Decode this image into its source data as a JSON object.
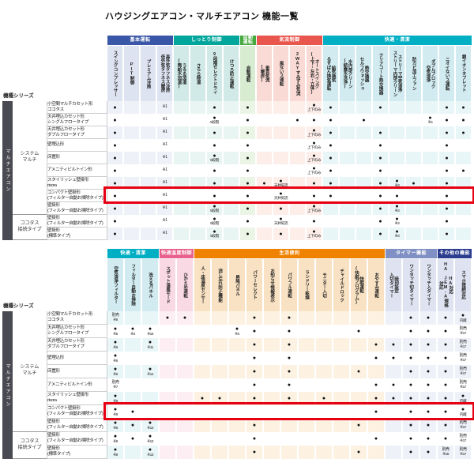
{
  "title": "ハウジングエアコン・マルチエアコン 機能一覧",
  "series_header": "機種シリーズ",
  "category_bar": "マルチエアコン",
  "left_groups": [
    {
      "label": "システム\nマルチ",
      "span": 9
    },
    {
      "label": "ココタス\n接続タイプ",
      "span": 2
    }
  ],
  "row_names": [
    "小空間マルチカセット形\nココタス",
    "天井埋込カセット形\nシングルフロータイプ",
    "天井埋込カセット形\nダブルフロータイプ",
    "壁埋込形",
    "床置形",
    "アメニティビルトイン形",
    "スタイリッシュ壁掛形\nrisora",
    "コンパクト壁掛形\n(フィルター自動お掃除タイプ)",
    "壁掛形\n(フィルター自動お掃除タイプ)",
    "壁掛形\n(フィルター自動お掃除タイプ)",
    "壁掛形\n(標準タイプ)"
  ],
  "highlight": {
    "row_index": 7,
    "color": "#e60012"
  },
  "tables": [
    {
      "name": "top-feature-table",
      "groups": [
        {
          "label": "基本運転",
          "color": "#3a57a7",
          "light": "#dde3f1",
          "tint": "#eef1f8",
          "cols": [
            "スイングコンプレッサー",
            "PIT制御",
            "プレミアム冷房",
            "高外気タフネス冷房\n低外気タフネス暖房"
          ]
        },
        {
          "label": "しっとり制御",
          "color": "#00a59b",
          "light": "#d1eae7",
          "tint": "#e9f5f3",
          "cols": [
            "うるる加湿\n(無給水加湿)",
            "さらら除湿",
            "9段階セレクトドライ",
            "けつろ防止運転"
          ]
        },
        {
          "label": "自動\n運転",
          "color": "#44a83d",
          "light": "#d8ecd2",
          "tint": "#ebf5e6",
          "cols": [
            "自動運転"
          ]
        },
        {
          "label": "気流制御",
          "color": "#e8564e",
          "light": "#f9dad4",
          "tint": "#fdeeea",
          "cols": [
            "垂直気流\n(暖房)",
            "風ないス運転",
            "2WAYすみずみ気流",
            "オートスイング\n(上下・左右・立体)"
          ]
        },
        {
          "label": "快適・清潔",
          "color": "#00afc3",
          "light": "#d1ebf1",
          "tint": "#e9f6f8",
          "cols": [
            "給気換気\nるすばん換気運転",
            "水内部クリーン\n(結露水洗浄)",
            "熱交換器\nセルフウォッシュ",
            "クリアコート熱交換器",
            "ストリーマ空気清浄\nストリーマ内部クリーン",
            "防カビ加工ファン",
            "ダブルブロック\n空気清浄",
            "ニオイないス運転",
            "銀イオンタブレット"
          ]
        }
      ],
      "cells": [
        [
          "●",
          "",
          "",
          "※1",
          "",
          "",
          "●",
          "",
          "●",
          "",
          "",
          "",
          "●|上下のみ",
          "●",
          "",
          "",
          "●",
          "",
          "",
          "",
          "●",
          "●"
        ],
        [
          "●",
          "",
          "",
          "※1",
          "",
          "",
          "●|5段階",
          "",
          "●",
          "",
          "",
          "●",
          "●",
          "●",
          "",
          "●",
          "",
          "",
          "",
          "●|※4",
          "●",
          "●"
        ],
        [
          "●",
          "",
          "",
          "※1",
          "",
          "",
          "●",
          "",
          "●",
          "",
          "",
          "",
          "●|上下のみ",
          "●",
          "",
          "",
          "●",
          "",
          "",
          "",
          "●",
          "●"
        ],
        [
          "●",
          "",
          "",
          "※1",
          "",
          "",
          "●",
          "",
          "●",
          "",
          "",
          "",
          "●|上下のみ",
          "●",
          "",
          "",
          "●",
          "",
          "",
          "",
          "●",
          ""
        ],
        [
          "●",
          "",
          "",
          "※1",
          "",
          "",
          "●|5段階",
          "",
          "●",
          "",
          "",
          "",
          "●|上下のみ",
          "●",
          "",
          "",
          "●",
          "",
          "",
          "",
          "●",
          ""
        ],
        [
          "●",
          "",
          "",
          "※1",
          "",
          "",
          "●",
          "",
          "●",
          "",
          "",
          "",
          "●|上下のみ",
          "●",
          "",
          "",
          "●",
          "",
          "",
          "",
          "●",
          "●"
        ],
        [
          "●",
          "",
          "",
          "※1",
          "",
          "",
          "●",
          "",
          "●",
          "●",
          "●|天井気流",
          "",
          "●",
          "●",
          "",
          "",
          "●",
          "●|※3",
          "●",
          "",
          "●",
          ""
        ],
        [
          "●",
          "",
          "",
          "※1",
          "",
          "",
          "●",
          "",
          "●",
          "",
          "●|天井気流",
          "",
          "●",
          "●",
          "",
          "",
          "●",
          "●",
          "",
          "",
          "●",
          ""
        ],
        [
          "●",
          "",
          "",
          "※1",
          "",
          "",
          "●|5段階",
          "",
          "●",
          "",
          "●",
          "",
          "●|上下のみ",
          "",
          "",
          "",
          "●",
          "●|※3",
          "",
          "",
          "●",
          ""
        ],
        [
          "●",
          "",
          "",
          "※1",
          "",
          "",
          "●|5段階",
          "",
          "●",
          "",
          "●|天井気流",
          "",
          "●",
          "",
          "",
          "",
          "●",
          "●|※3",
          "",
          "",
          "●",
          ""
        ],
        [
          "●",
          "",
          "",
          "※1",
          "",
          "",
          "●|5段階",
          "",
          "●",
          "",
          "●",
          "",
          "●|上下のみ",
          "",
          "",
          "",
          "●",
          "●|※3",
          "",
          "",
          "●",
          ""
        ]
      ]
    },
    {
      "name": "bottom-feature-table",
      "groups": [
        {
          "label": "快適・清潔",
          "color": "#00afc3",
          "light": "#d1ebf1",
          "tint": "#e9f6f8",
          "cols": [
            "空気清浄フィルター",
            "フィルター自動お掃除",
            "洗えるパネル"
          ]
        },
        {
          "label": "快適温度制御",
          "color": "#e8608c",
          "light": "#f9d9e3",
          "tint": "#fdeef3",
          "cols": [
            "スポット温風モード",
            "ひかえめ運転"
          ]
        },
        {
          "label": "生活便利",
          "color": "#ef8200",
          "light": "#f9e2c3",
          "tint": "#fdf2e1",
          "cols": [
            "人・床温度センサー",
            "消し忘れ防止機能",
            "昇降パネル",
            "パワーセレクト",
            "お知らせ情報表示",
            "パワフル運転",
            "ランドリー乾燥",
            "モニター入切",
            "チャイルドロック",
            "快眠運転\n(快眠プログラム)",
            "おやすみ運転"
          ]
        },
        {
          "label": "タイマー機能",
          "color": "#8090c4",
          "light": "#dfe3f1",
          "tint": "#eef1f8",
          "cols": [
            "時刻設定\n入切タイマー",
            "ワンタッチ切タイマー",
            "ワンタッチ入タイマー"
          ]
        },
        {
          "label": "その他の機能",
          "color": "#2b3c8f",
          "light": "#dfe3f1",
          "tint": "#eef1f8",
          "cols": [
            "HA対応\nHA JEM-A規格対応",
            "スマホ接続対応"
          ]
        }
      ],
      "cells": [
        [
          "別売|※8",
          "",
          "",
          "●",
          "●",
          "",
          "",
          "",
          "●",
          "",
          "●",
          "",
          "",
          "",
          "",
          "",
          "",
          "●",
          "●",
          "●",
          "●|内蔵"
        ],
        [
          "●|※5",
          "●|※4",
          "●|※10",
          "",
          "",
          "",
          "",
          "●|※4",
          "●",
          "",
          "●",
          "",
          "",
          "",
          "●",
          "",
          "",
          "●",
          "●",
          "●",
          "別売|※17"
        ],
        [
          "●|※6",
          "",
          "●|※11",
          "",
          "",
          "",
          "",
          "",
          "●",
          "",
          "●",
          "",
          "",
          "",
          "",
          "●",
          "●",
          "●",
          "●",
          "●",
          "別売|※17"
        ],
        [
          "●|※6",
          "",
          "",
          "",
          "",
          "",
          "",
          "",
          "●",
          "",
          "●",
          "",
          "",
          "",
          "",
          "●",
          "●",
          "●",
          "●",
          "●",
          "別売|※17"
        ],
        [
          "●|※6",
          "",
          "●|※12",
          "",
          "",
          "",
          "",
          "",
          "●",
          "",
          "●",
          "",
          "",
          "",
          "●",
          "",
          "",
          "●",
          "●",
          "●",
          "別売|※17"
        ],
        [
          "別売|※7",
          "",
          "",
          "",
          "",
          "",
          "",
          "",
          "●",
          "",
          "●",
          "",
          "",
          "",
          "",
          "●",
          "●",
          "●",
          "●",
          "●",
          "別売|※17"
        ],
        [
          "●|※9",
          "",
          "",
          "",
          "",
          "●",
          "●",
          "",
          "●",
          "",
          "●",
          "",
          "●",
          "",
          "",
          "●",
          "●",
          "●",
          "●",
          "●",
          "●|内蔵"
        ],
        [
          "●|※9",
          "●",
          "",
          "",
          "",
          "",
          "",
          "",
          "",
          "",
          "",
          "",
          "",
          "",
          "",
          "●",
          "",
          "●",
          "●",
          "●",
          "●|内蔵"
        ],
        [
          "●|※8",
          "●",
          "●|※13",
          "",
          "",
          "",
          "",
          "",
          "●",
          "",
          "",
          "",
          "",
          "",
          "●",
          "",
          "",
          "●",
          "●",
          "●",
          "別売|※17"
        ],
        [
          "●|※8",
          "●",
          "●|※13",
          "",
          "",
          "",
          "",
          "",
          "●",
          "",
          "",
          "",
          "",
          "",
          "",
          "●",
          "",
          "●",
          "●",
          "●",
          "別売|※17"
        ],
        [
          "●|※8",
          "",
          "●|※13",
          "",
          "",
          "",
          "",
          "",
          "●",
          "",
          "",
          "",
          "",
          "",
          "●",
          "",
          "",
          "●",
          "●",
          "別売|※16",
          "別売|※17"
        ]
      ]
    }
  ]
}
